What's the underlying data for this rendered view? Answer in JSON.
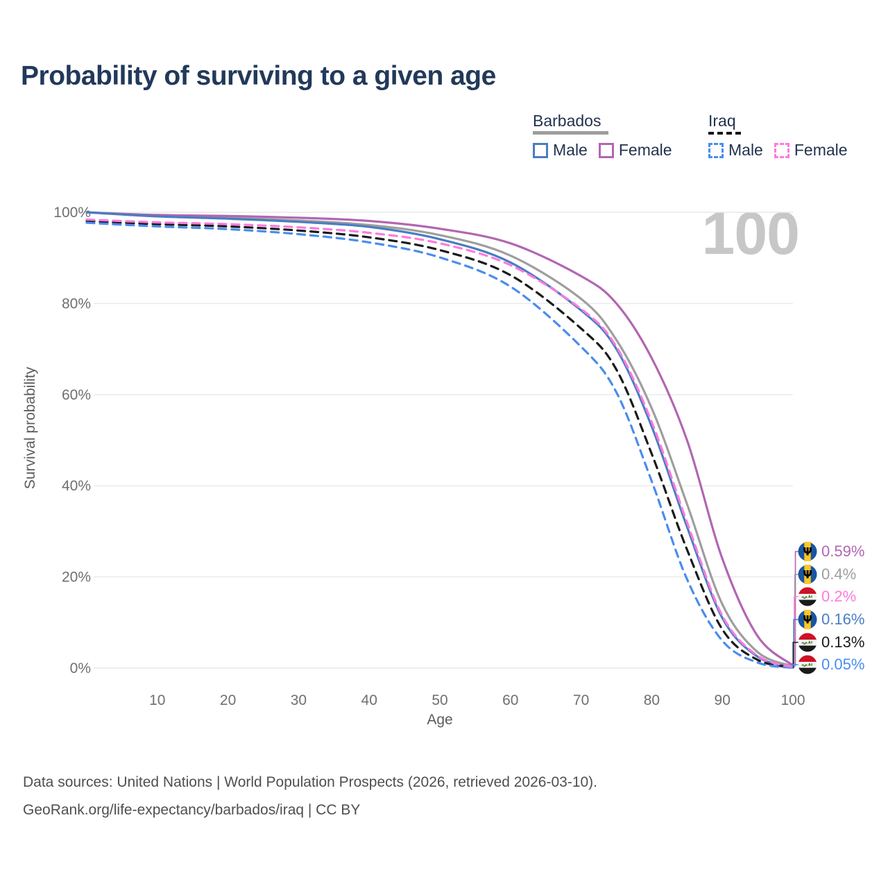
{
  "title": "Probability of surviving to a given age",
  "watermark_age": "100",
  "legend": {
    "groups": [
      {
        "name": "Barbados",
        "line_style": "solid",
        "underline_color": "#9e9e9e",
        "items": [
          {
            "label": "Male",
            "color": "#4a7dc0",
            "dash": "solid"
          },
          {
            "label": "Female",
            "color": "#b266b2",
            "dash": "solid"
          }
        ]
      },
      {
        "name": "Iraq",
        "line_style": "dashed",
        "underline_color": "#141414",
        "items": [
          {
            "label": "Male",
            "color": "#4a8cf0",
            "dash": "dashed"
          },
          {
            "label": "Female",
            "color": "#ff7ade",
            "dash": "dashed"
          }
        ]
      }
    ]
  },
  "chart_data": {
    "type": "line",
    "title": "Probability of surviving to a given age",
    "xlabel": "Age",
    "ylabel": "Survival probability",
    "xlim": [
      0,
      100
    ],
    "ylim": [
      0,
      100
    ],
    "xticks": [
      10,
      20,
      30,
      40,
      50,
      60,
      70,
      80,
      90,
      100
    ],
    "yticks": [
      0,
      20,
      40,
      60,
      80,
      100
    ],
    "ytick_suffix": "%",
    "grid": "horizontal",
    "legend_position": "top-right",
    "x": [
      0,
      10,
      20,
      30,
      40,
      50,
      60,
      70,
      75,
      80,
      85,
      90,
      95,
      100
    ],
    "series": [
      {
        "name": "Barbados All",
        "country": "Barbados",
        "sex": "all",
        "color": "#9e9e9e",
        "dash": "solid",
        "values": [
          100,
          99.2,
          98.8,
          98.2,
          97.2,
          95.0,
          90.5,
          81.0,
          72.0,
          57.0,
          36.0,
          14.0,
          3.5,
          0.4
        ],
        "end_label": "0.4%"
      },
      {
        "name": "Barbados Female",
        "country": "Barbados",
        "sex": "female",
        "color": "#b266b2",
        "dash": "solid",
        "values": [
          100,
          99.4,
          99.2,
          98.8,
          98.1,
          96.4,
          93.2,
          86.0,
          80.0,
          68.0,
          50.0,
          24.0,
          7.0,
          0.59
        ],
        "end_label": "0.59%"
      },
      {
        "name": "Barbados Male",
        "country": "Barbados",
        "sex": "male",
        "color": "#4a7dc0",
        "dash": "solid",
        "values": [
          100,
          99.1,
          98.6,
          97.9,
          96.8,
          94.1,
          89.0,
          78.5,
          70.0,
          53.0,
          31.0,
          11.0,
          2.5,
          0.16
        ],
        "end_label": "0.16%"
      },
      {
        "name": "Iraq All",
        "country": "Iraq",
        "sex": "all",
        "color": "#1a1a1a",
        "dash": "dashed",
        "values": [
          98.1,
          97.4,
          96.9,
          96.0,
          94.5,
          91.7,
          86.2,
          74.5,
          65.5,
          47.0,
          26.0,
          8.5,
          1.8,
          0.13
        ],
        "end_label": "0.13%"
      },
      {
        "name": "Iraq Male",
        "country": "Iraq",
        "sex": "male",
        "color": "#4a8cf0",
        "dash": "dashed",
        "values": [
          97.7,
          96.9,
          96.3,
          95.2,
          93.4,
          90.1,
          83.7,
          70.5,
          60.5,
          41.0,
          19.5,
          6.0,
          1.2,
          0.05
        ],
        "end_label": "0.05%"
      },
      {
        "name": "Iraq Female",
        "country": "Iraq",
        "sex": "female",
        "color": "#ff7ade",
        "dash": "dashed",
        "values": [
          98.4,
          97.8,
          97.4,
          96.7,
          95.5,
          93.2,
          88.4,
          78.8,
          70.5,
          54.0,
          32.0,
          11.5,
          2.7,
          0.2
        ],
        "end_label": "0.2%"
      }
    ]
  },
  "end_labels": [
    {
      "flag": "barbados",
      "value": "0.59%",
      "color": "#b266b2",
      "end_value": 0.59
    },
    {
      "flag": "barbados",
      "value": "0.4%",
      "color": "#9e9e9e",
      "end_value": 0.4
    },
    {
      "flag": "iraq",
      "value": "0.2%",
      "color": "#ff7ade",
      "end_value": 0.2
    },
    {
      "flag": "barbados",
      "value": "0.16%",
      "color": "#4a7dc0",
      "end_value": 0.16
    },
    {
      "flag": "iraq",
      "value": "0.13%",
      "color": "#1a1a1a",
      "end_value": 0.13
    },
    {
      "flag": "iraq",
      "value": "0.05%",
      "color": "#4a8cf0",
      "end_value": 0.05
    }
  ],
  "footer": {
    "line1": "Data sources: United Nations | World Population Prospects (2026, retrieved 2026-03-10).",
    "line2": "GeoRank.org/life-expectancy/barbados/iraq | CC BY"
  },
  "colors": {
    "title_text": "#21395a",
    "legend_text": "#24324e",
    "axis_text": "#6f6f6f",
    "axis_title_text": "#5c5c5c",
    "gridline": "#e9e9e9",
    "watermark": "#c7c7c7",
    "footer_text": "#4f4f4f",
    "background": "#ffffff"
  }
}
